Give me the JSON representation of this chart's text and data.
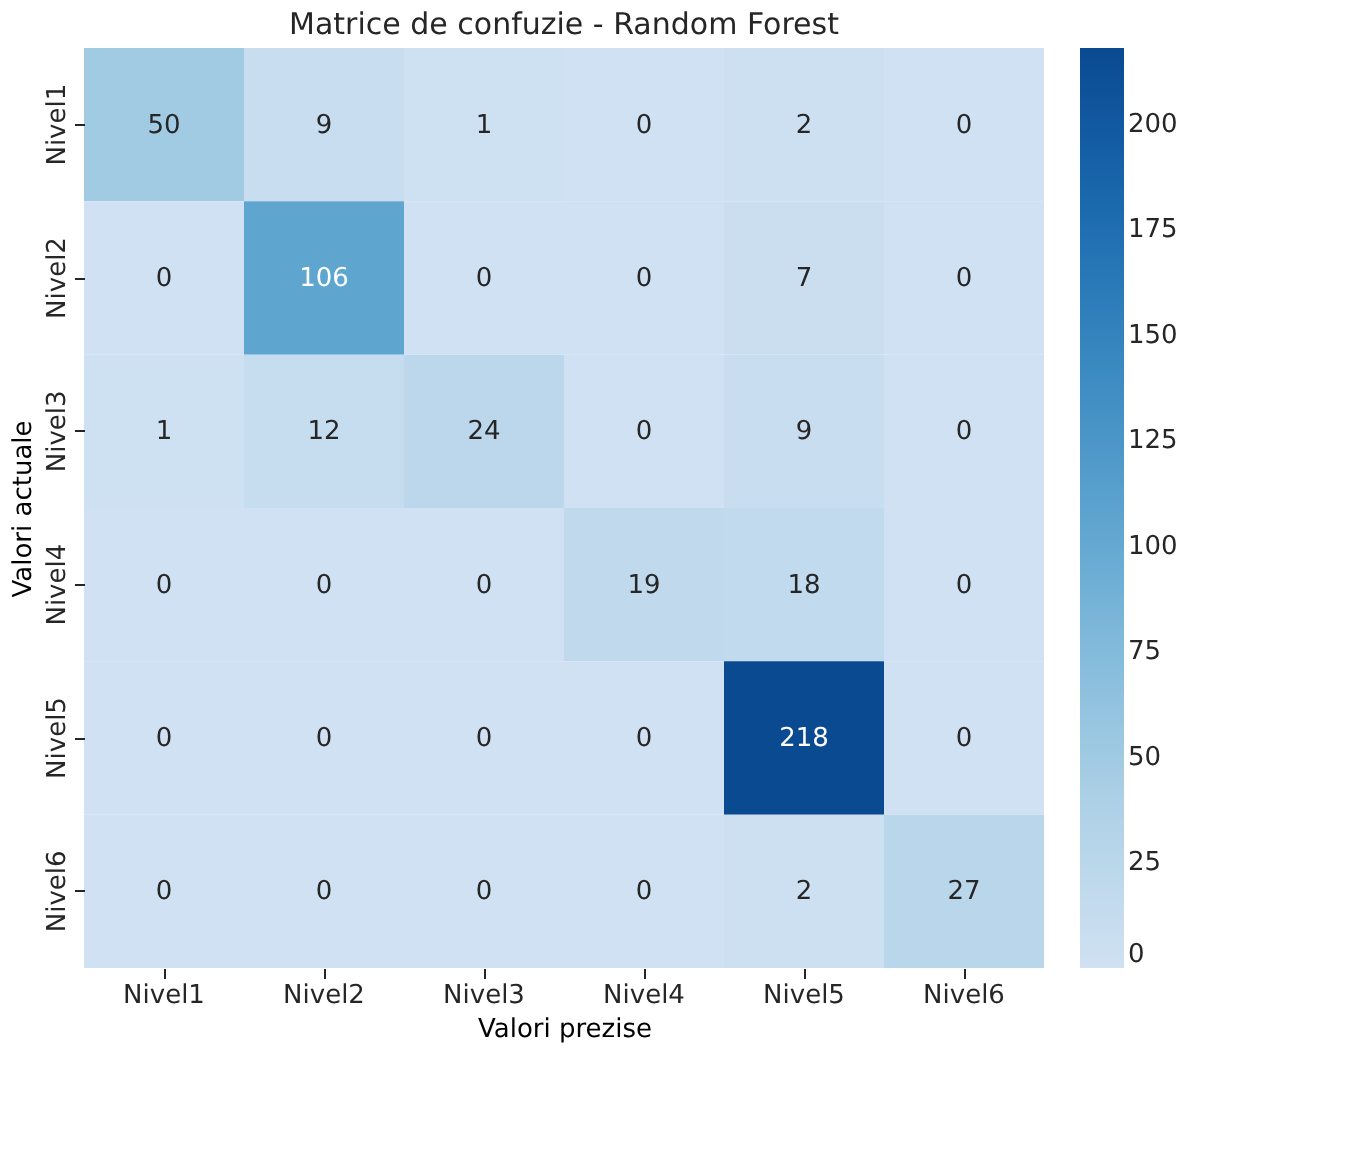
{
  "chart_data": {
    "type": "heatmap",
    "title": "Matrice de confuzie - Random Forest",
    "xlabel": "Valori prezise",
    "ylabel": "Valori actuale",
    "categories": [
      "Nivel1",
      "Nivel2",
      "Nivel3",
      "Nivel4",
      "Nivel5",
      "Nivel6"
    ],
    "y_categories": [
      "Nivel1",
      "Nivel2",
      "Nivel3",
      "Nivel4",
      "Nivel5",
      "Nivel6"
    ],
    "cells": [
      [
        50,
        9,
        1,
        0,
        2,
        0
      ],
      [
        0,
        106,
        0,
        0,
        7,
        0
      ],
      [
        1,
        12,
        24,
        0,
        9,
        0
      ],
      [
        0,
        0,
        0,
        19,
        18,
        0
      ],
      [
        0,
        0,
        0,
        0,
        218,
        0
      ],
      [
        0,
        0,
        0,
        0,
        2,
        27
      ]
    ],
    "clim": [
      0,
      218
    ],
    "cticks": [
      0,
      25,
      50,
      75,
      100,
      125,
      150,
      175,
      200
    ],
    "data_labels": true
  }
}
